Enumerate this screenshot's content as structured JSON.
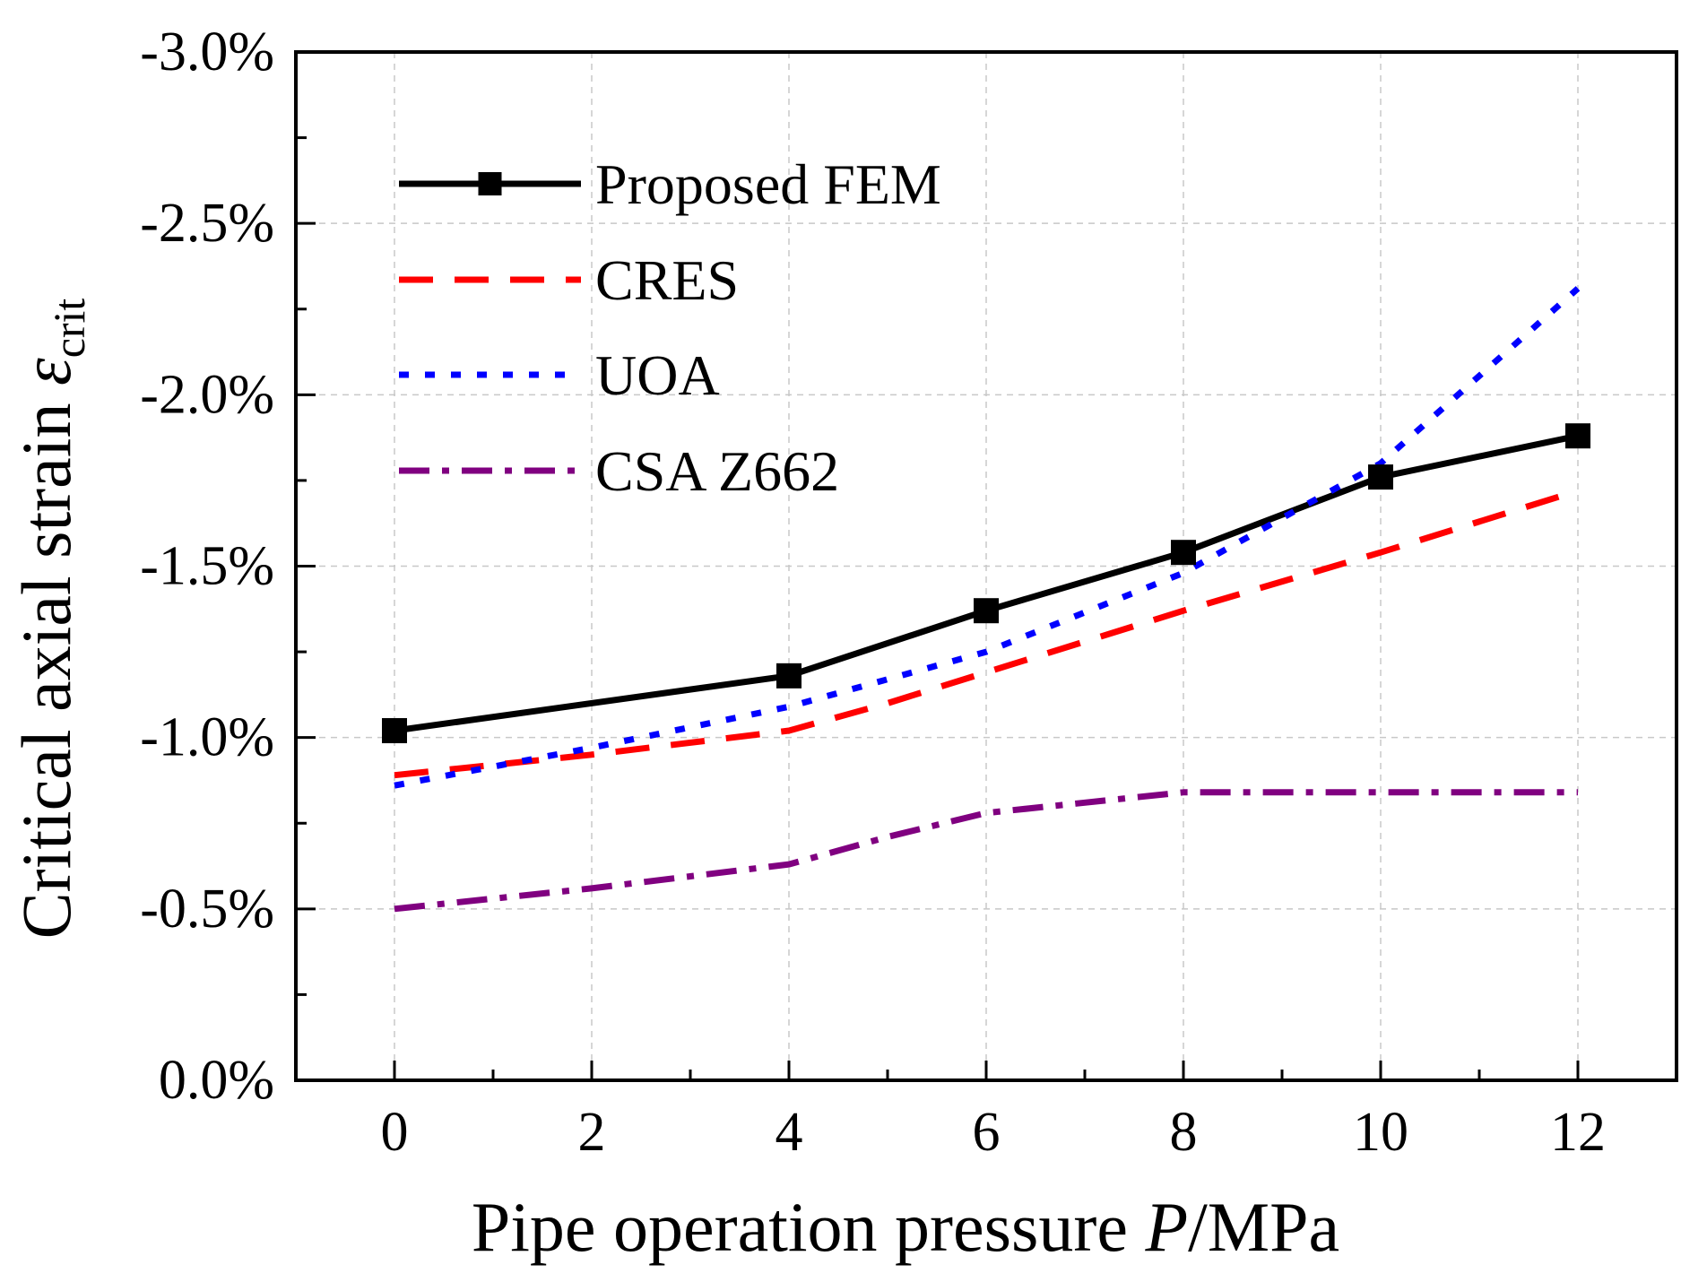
{
  "chart_data": {
    "type": "line",
    "title": "",
    "xlabel": "Pipe operation pressure ",
    "xlabel_italic": "P",
    "xlabel_suffix": "/MPa",
    "ylabel": "Critical axial strain ",
    "ylabel_symbol": "ε",
    "ylabel_subscript": "crit",
    "xlim": [
      -1,
      13
    ],
    "ylim": [
      0.0,
      -3.0
    ],
    "x_ticks": [
      0,
      2,
      4,
      6,
      8,
      10,
      12
    ],
    "x_tick_labels": [
      "0",
      "2",
      "4",
      "6",
      "8",
      "10",
      "12"
    ],
    "y_ticks": [
      0.0,
      -0.5,
      -1.0,
      -1.5,
      -2.0,
      -2.5,
      -3.0
    ],
    "y_tick_labels": [
      "0.0%",
      "-0.5%",
      "-1.0%",
      "-1.5%",
      "-2.0%",
      "-2.5%",
      "-3.0%"
    ],
    "grid": true,
    "legend_position": "top-left",
    "series": [
      {
        "name": "Proposed FEM",
        "color": "#000000",
        "style": "solid",
        "marker": "square",
        "x": [
          0,
          4,
          6,
          8,
          10,
          12
        ],
        "values": [
          -1.02,
          -1.18,
          -1.37,
          -1.54,
          -1.76,
          -1.88
        ]
      },
      {
        "name": "CRES",
        "color": "#ff0000",
        "style": "dashed",
        "marker": "none",
        "x": [
          0,
          2,
          4,
          5,
          6,
          8,
          10,
          12
        ],
        "values": [
          -0.89,
          -0.95,
          -1.02,
          -1.1,
          -1.19,
          -1.37,
          -1.54,
          -1.72
        ]
      },
      {
        "name": "UOA",
        "color": "#0000ff",
        "style": "dotted",
        "marker": "none",
        "x": [
          0,
          2,
          4,
          6,
          8,
          10,
          12
        ],
        "values": [
          -0.86,
          -0.97,
          -1.09,
          -1.25,
          -1.48,
          -1.8,
          -2.31
        ]
      },
      {
        "name": "CSA Z662",
        "color": "#800080",
        "style": "dashdot",
        "marker": "none",
        "x": [
          0,
          2,
          4,
          5,
          6,
          7,
          8,
          10,
          12
        ],
        "values": [
          -0.5,
          -0.56,
          -0.63,
          -0.71,
          -0.78,
          -0.81,
          -0.84,
          -0.84,
          -0.84
        ]
      }
    ]
  }
}
